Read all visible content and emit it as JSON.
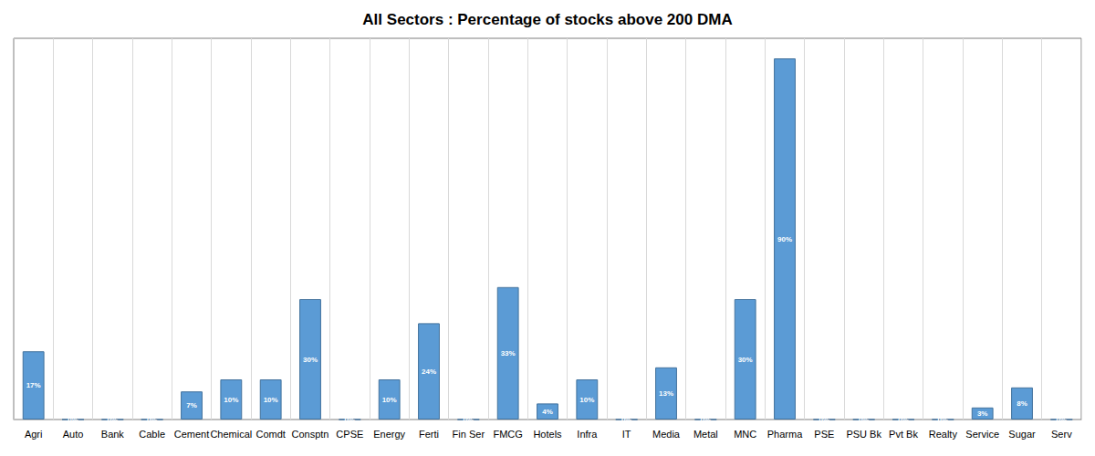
{
  "chart_data": {
    "type": "bar",
    "title": "All Sectors : Percentage of stocks above 200 DMA",
    "categories": [
      "Agri",
      "Auto",
      "Bank",
      "Cable",
      "Cement",
      "Chemical",
      "Comdt",
      "Consptn",
      "CPSE",
      "Energy",
      "Ferti",
      "Fin Ser",
      "FMCG",
      "Hotels",
      "Infra",
      "IT",
      "Media",
      "Metal",
      "MNC",
      "Pharma",
      "PSE",
      "PSU Bk",
      "Pvt Bk",
      "Realty",
      "Service",
      "Sugar",
      "Serv"
    ],
    "values": [
      17,
      0,
      0,
      0,
      7,
      10,
      10,
      30,
      0,
      10,
      24,
      0,
      33,
      4,
      10,
      0,
      13,
      0,
      30,
      90,
      0,
      0,
      0,
      0,
      3,
      8,
      0
    ],
    "value_labels": [
      "17%",
      "0%",
      "0%",
      "0%",
      "7%",
      "10%",
      "10%",
      "30%",
      "0%",
      "10%",
      "24%",
      "0%",
      "33%",
      "4%",
      "10%",
      "0%",
      "13%",
      "0%",
      "30%",
      "90%",
      "0%",
      "0%",
      "0%",
      "0%",
      "3%",
      "8%",
      "0%"
    ],
    "color": "#5b9bd5",
    "ylim": [
      0,
      95
    ],
    "grid": true,
    "data_labels": true,
    "tick_labels": "x"
  }
}
